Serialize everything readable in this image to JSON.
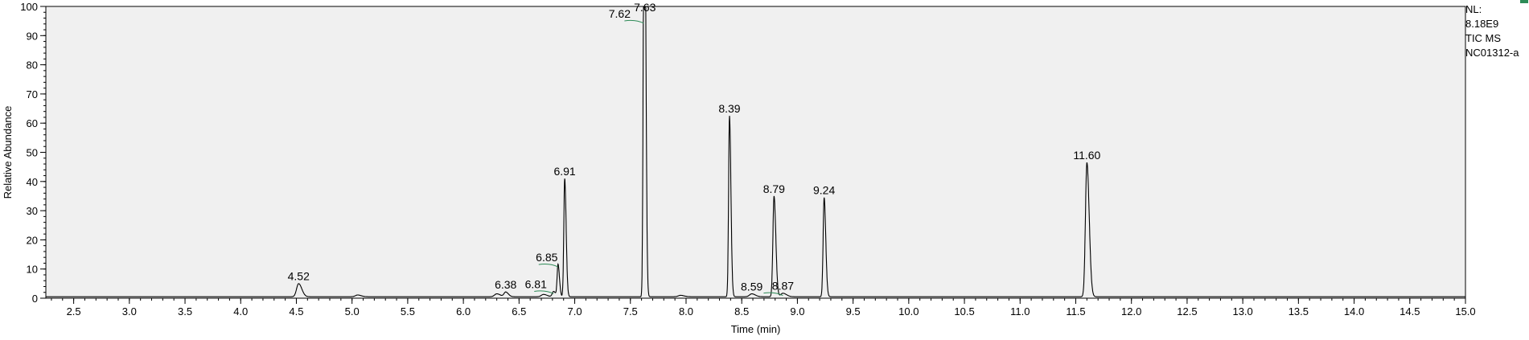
{
  "info": {
    "nl_label": "NL:",
    "nl_value": "8.18E9",
    "trace": "TIC  MS",
    "sample": "NC01312-a"
  },
  "colors": {
    "plot_background": "#f0f0f0",
    "trace": "#000000",
    "integration_marks": "#2e8b57"
  },
  "chart_data": {
    "type": "line",
    "title": "",
    "xlabel": "Time (min)",
    "ylabel": "Relative Abundance",
    "xlim": [
      2.25,
      15.0
    ],
    "ylim": [
      0,
      100
    ],
    "x_ticks": [
      "2.5",
      "3.0",
      "3.5",
      "4.0",
      "4.5",
      "5.0",
      "5.5",
      "6.0",
      "6.5",
      "7.0",
      "7.5",
      "8.0",
      "8.5",
      "9.0",
      "9.5",
      "10.0",
      "10.5",
      "11.0",
      "11.5",
      "12.0",
      "12.5",
      "13.0",
      "13.5",
      "14.0",
      "14.5",
      "15.0"
    ],
    "y_ticks": [
      "0",
      "10",
      "20",
      "30",
      "40",
      "50",
      "60",
      "70",
      "80",
      "90",
      "100"
    ],
    "baseline": 0.5,
    "peaks": [
      {
        "rt": 4.52,
        "label": "4.52",
        "height": 4.5,
        "width": 0.018
      },
      {
        "rt": 5.05,
        "label": "",
        "height": 0.6,
        "width": 0.02
      },
      {
        "rt": 6.3,
        "label": "",
        "height": 1.0,
        "width": 0.02
      },
      {
        "rt": 6.38,
        "label": "6.38",
        "height": 1.6,
        "width": 0.015
      },
      {
        "rt": 6.72,
        "label": "",
        "height": 0.8,
        "width": 0.02
      },
      {
        "rt": 6.81,
        "label": "6.81",
        "height": 1.8,
        "width": 0.012
      },
      {
        "rt": 6.85,
        "label": "6.85",
        "height": 11.0,
        "width": 0.008
      },
      {
        "rt": 6.91,
        "label": "6.91",
        "height": 40.5,
        "width": 0.008
      },
      {
        "rt": 7.62,
        "label": "7.62",
        "height": 94.5,
        "width": 0.007
      },
      {
        "rt": 7.63,
        "label": "7.63",
        "height": 100.0,
        "width": 0.007
      },
      {
        "rt": 7.95,
        "label": "",
        "height": 0.5,
        "width": 0.02
      },
      {
        "rt": 8.39,
        "label": "8.39",
        "height": 62.0,
        "width": 0.008
      },
      {
        "rt": 8.59,
        "label": "8.59",
        "height": 1.0,
        "width": 0.02
      },
      {
        "rt": 8.79,
        "label": "8.79",
        "height": 34.5,
        "width": 0.01
      },
      {
        "rt": 8.87,
        "label": "8.87",
        "height": 1.2,
        "width": 0.02
      },
      {
        "rt": 9.24,
        "label": "9.24",
        "height": 34.0,
        "width": 0.009
      },
      {
        "rt": 11.6,
        "label": "11.60",
        "height": 46.0,
        "width": 0.013
      }
    ]
  }
}
